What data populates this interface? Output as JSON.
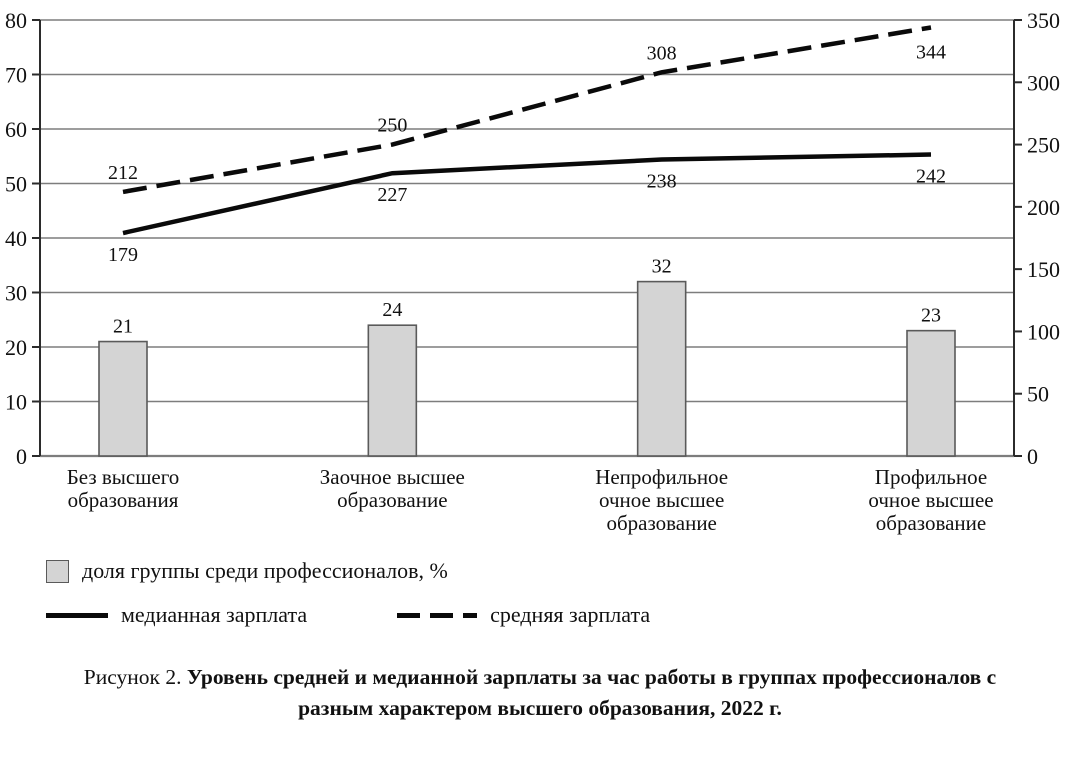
{
  "colors": {
    "bar_fill": "#d4d4d4",
    "bar_border": "#5a5a5a",
    "line": "#0a0a0a",
    "grid": "#7d7d7d",
    "axis": "#2b2b2b"
  },
  "chart_data": {
    "type": "combo",
    "grid": true,
    "legend_position": "bottom",
    "left_axis": {
      "min": 0,
      "max": 80,
      "step": 10
    },
    "right_axis": {
      "min": 0,
      "max": 350,
      "step": 50
    },
    "categories": [
      [
        "Без высшего",
        "образования"
      ],
      [
        "Заочное высшее",
        "образование"
      ],
      [
        "Непрофильное",
        "очное высшее",
        "образование"
      ],
      [
        "Профильное",
        "очное высшее",
        "образование"
      ]
    ],
    "bar_series": {
      "key": "group-share",
      "name": "доля группы среди профессионалов, %",
      "axis": "left",
      "values": [
        21,
        24,
        32,
        23
      ]
    },
    "line_series": [
      {
        "key": "median-salary",
        "name": "медианная зарплата",
        "axis": "right",
        "style": "solid",
        "label_side": "below",
        "values": [
          179,
          227,
          238,
          242
        ]
      },
      {
        "key": "mean-salary",
        "name": "средняя зарплата",
        "axis": "right",
        "style": "dashed",
        "label_side": "above",
        "values": [
          212,
          250,
          308,
          344
        ]
      }
    ]
  },
  "legend": {
    "bar_label": "доля группы среди профессионалов, %",
    "median_label": "медианная зарплата",
    "mean_label": "средняя зарплата"
  },
  "caption": {
    "prefix": "Рисунок 2. ",
    "title": "Уровень средней и медианной зарплаты за час работы в группах профессионалов с разным характером высшего образования, 2022 г."
  }
}
